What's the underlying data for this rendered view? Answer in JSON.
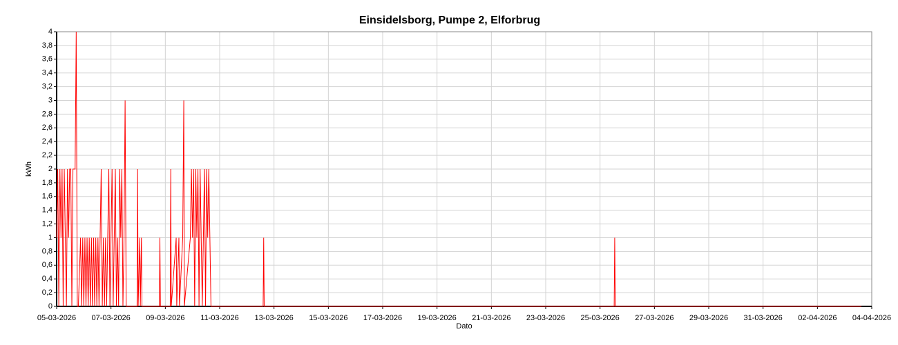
{
  "chart_data": {
    "type": "line",
    "title": "Einsidelsborg, Pumpe 2, Elforbrug",
    "xlabel": "Dato",
    "ylabel": "kWh",
    "grid": true,
    "color": "#ff0000",
    "xlim": [
      0,
      30
    ],
    "ylim": [
      0,
      4
    ],
    "xticks": [
      {
        "value": 0,
        "label": "05-03-2026"
      },
      {
        "value": 2,
        "label": "07-03-2026"
      },
      {
        "value": 4,
        "label": "09-03-2026"
      },
      {
        "value": 6,
        "label": "11-03-2026"
      },
      {
        "value": 8,
        "label": "13-03-2026"
      },
      {
        "value": 10,
        "label": "15-03-2026"
      },
      {
        "value": 12,
        "label": "17-03-2026"
      },
      {
        "value": 14,
        "label": "19-03-2026"
      },
      {
        "value": 16,
        "label": "21-03-2026"
      },
      {
        "value": 18,
        "label": "23-03-2026"
      },
      {
        "value": 20,
        "label": "25-03-2026"
      },
      {
        "value": 22,
        "label": "27-03-2026"
      },
      {
        "value": 24,
        "label": "29-03-2026"
      },
      {
        "value": 26,
        "label": "31-03-2026"
      },
      {
        "value": 28,
        "label": "02-04-2026"
      },
      {
        "value": 30,
        "label": "04-04-2026"
      }
    ],
    "yticks": [
      0,
      {
        "value": 0.2,
        "label": "0,2"
      },
      {
        "value": 0.4,
        "label": "0,4"
      },
      {
        "value": 0.6,
        "label": "0,6"
      },
      {
        "value": 0.8,
        "label": "0,8"
      },
      1,
      {
        "value": 1.2,
        "label": "1,2"
      },
      {
        "value": 1.4,
        "label": "1,4"
      },
      {
        "value": 1.6,
        "label": "1,6"
      },
      {
        "value": 1.8,
        "label": "1,8"
      },
      2,
      {
        "value": 2.2,
        "label": "2,2"
      },
      {
        "value": 2.4,
        "label": "2,4"
      },
      {
        "value": 2.6,
        "label": "2,6"
      },
      {
        "value": 2.8,
        "label": "2,8"
      },
      3,
      {
        "value": 3.2,
        "label": "3,2"
      },
      {
        "value": 3.4,
        "label": "3,4"
      },
      {
        "value": 3.6,
        "label": "3,6"
      },
      {
        "value": 3.8,
        "label": "3,8"
      },
      4
    ],
    "x": [
      0,
      0.04,
      0.08,
      0.12,
      0.16,
      0.2,
      0.24,
      0.28,
      0.32,
      0.36,
      0.4,
      0.44,
      0.48,
      0.52,
      0.56,
      0.6,
      0.64,
      0.68,
      0.72,
      0.76,
      0.8,
      0.88,
      0.92,
      0.96,
      1,
      1.04,
      1.08,
      1.12,
      1.16,
      1.2,
      1.24,
      1.28,
      1.32,
      1.36,
      1.4,
      1.44,
      1.48,
      1.52,
      1.56,
      1.6,
      1.64,
      1.68,
      1.72,
      1.76,
      1.8,
      1.84,
      1.88,
      1.92,
      1.96,
      2,
      2.04,
      2.08,
      2.12,
      2.16,
      2.2,
      2.24,
      2.28,
      2.32,
      2.36,
      2.4,
      2.44,
      2.48,
      2.52,
      2.56,
      2.96,
      2.98,
      3,
      3.06,
      3.08,
      3.12,
      3.14,
      3.78,
      3.8,
      3.82,
      4.18,
      4.2,
      4.22,
      4.4,
      4.42,
      4.5,
      4.52,
      4.64,
      4.66,
      4.68,
      4.7,
      4.92,
      4.96,
      5,
      5.04,
      5.08,
      5.12,
      5.16,
      5.2,
      5.24,
      5.28,
      5.32,
      5.36,
      5.4,
      5.44,
      5.48,
      5.52,
      5.56,
      5.6,
      5.64,
      5.68,
      7.6,
      7.62,
      7.64,
      20.52,
      20.54,
      20.56,
      29.62
    ],
    "values": [
      1,
      2,
      0,
      2,
      1,
      2,
      0,
      2,
      1,
      0,
      2,
      1,
      2,
      2,
      0,
      2,
      2,
      2,
      4,
      0,
      0,
      1,
      0,
      1,
      0,
      1,
      0,
      1,
      0,
      1,
      0,
      1,
      0,
      1,
      0,
      1,
      0,
      1,
      0,
      1,
      2,
      0,
      1,
      0,
      1,
      0,
      1,
      2,
      0,
      1,
      2,
      0,
      1,
      2,
      0,
      1,
      0,
      2,
      1,
      2,
      0,
      1,
      3,
      0,
      0,
      2,
      0,
      1,
      0,
      1,
      0,
      0,
      1,
      0,
      0,
      2,
      0,
      1,
      0,
      1,
      0,
      1,
      2,
      3,
      0,
      1,
      2,
      1,
      2,
      0,
      2,
      1,
      2,
      0,
      2,
      1,
      0,
      1,
      2,
      0,
      2,
      1,
      2,
      1,
      0,
      0,
      1,
      0,
      0,
      1,
      0,
      0
    ]
  }
}
